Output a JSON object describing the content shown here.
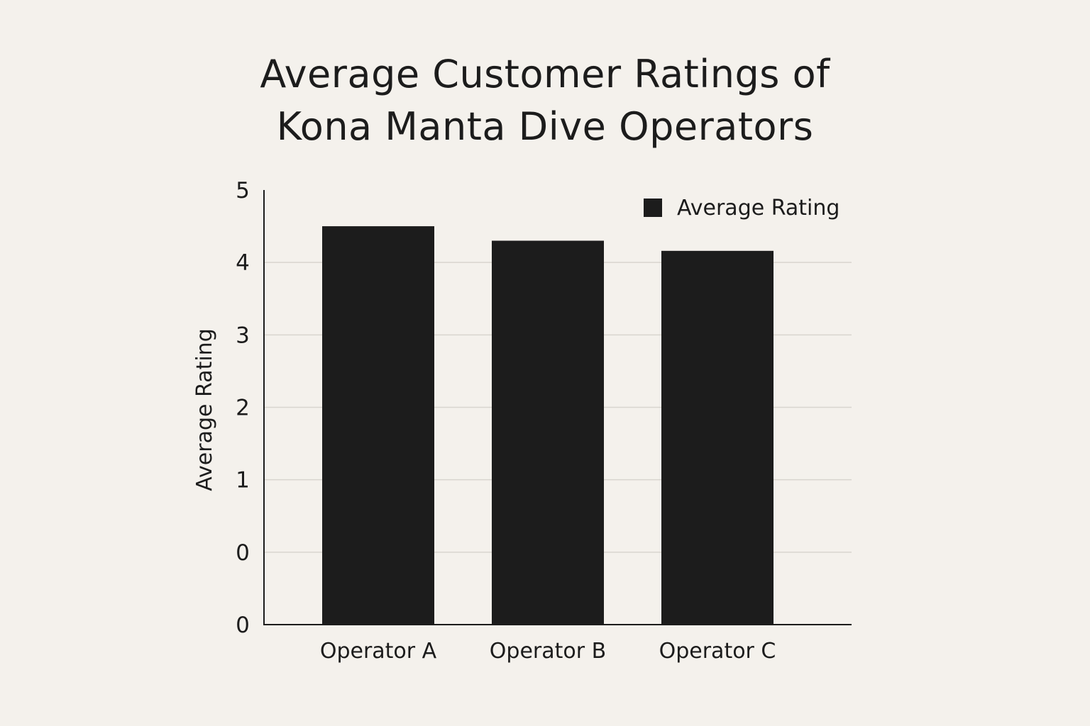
{
  "chart_data": {
    "type": "bar",
    "title_lines": [
      "Average Customer Ratings of",
      "Kona Manta Dive Operators"
    ],
    "ylabel": "Average Rating",
    "xlabel": "",
    "categories": [
      "Operator A",
      "Operator B",
      "Operator C"
    ],
    "series": [
      {
        "name": "Average Rating",
        "values": [
          4.5,
          4.3,
          4.16
        ]
      }
    ],
    "y_tick_labels": [
      "0",
      "0",
      "1",
      "2",
      "3",
      "4",
      "5"
    ],
    "ylim": [
      -1,
      5
    ],
    "grid": true,
    "legend": "top-right",
    "colors": {
      "bar": "#1c1c1c",
      "background": "#f4f1ec",
      "grid": "#d8d5cf",
      "axis": "#1c1c1c"
    }
  }
}
